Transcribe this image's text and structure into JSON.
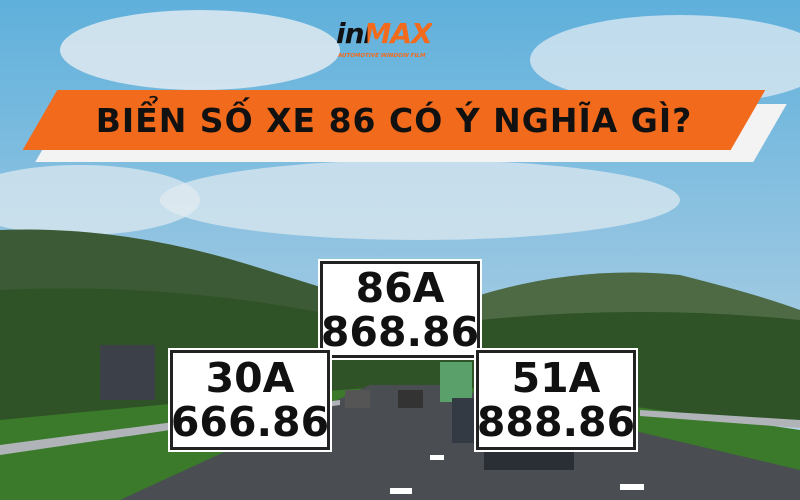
{
  "brand": {
    "name": "inMAX",
    "part1": "in",
    "part2": "MAX",
    "tagline": "AUTOMOTIVE WINDOW FILM",
    "color": "#f26a1b"
  },
  "headline": "BIỂN SỐ XE 86 CÓ Ý NGHĨA GÌ?",
  "plates": [
    {
      "line1": "86A",
      "line2": "868.86"
    },
    {
      "line1": "30A",
      "line2": "666.86"
    },
    {
      "line1": "51A",
      "line2": "888.86"
    }
  ]
}
